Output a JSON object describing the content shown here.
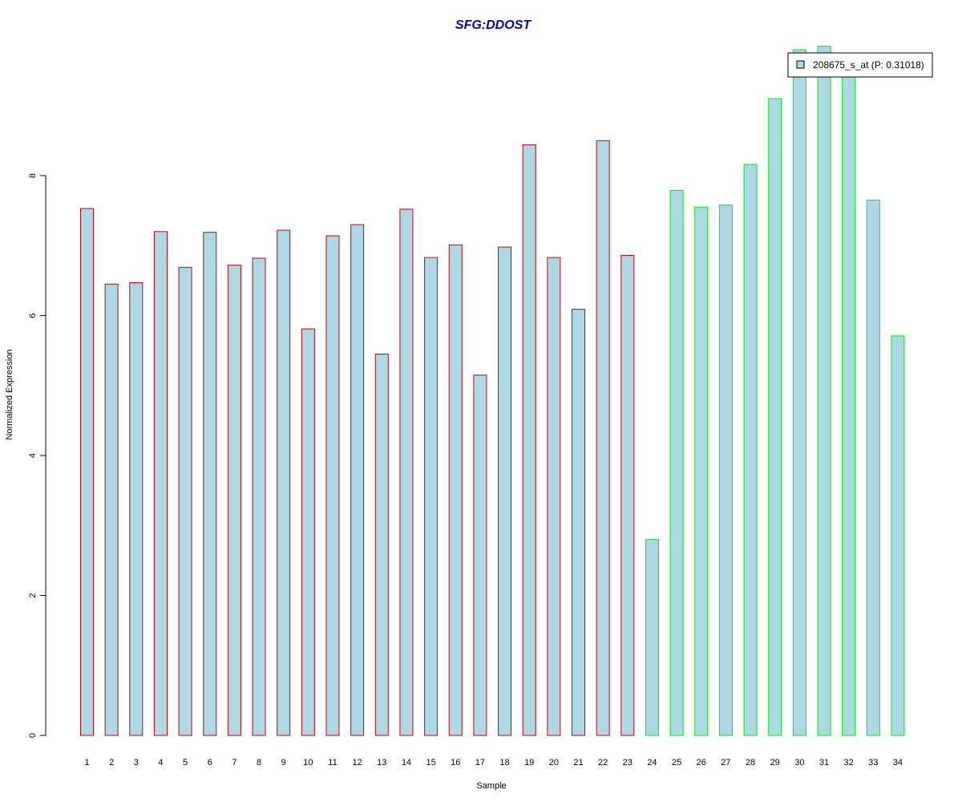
{
  "chart_data": {
    "type": "bar",
    "title": "SFG:DDOST",
    "xlabel": "Sample",
    "ylabel": "Normalized Expression",
    "ylim": [
      0,
      10
    ],
    "yticks": [
      "0",
      "2",
      "4",
      "6",
      "8"
    ],
    "categories": [
      "1",
      "2",
      "3",
      "4",
      "5",
      "6",
      "7",
      "8",
      "9",
      "10",
      "11",
      "12",
      "13",
      "14",
      "15",
      "16",
      "17",
      "18",
      "19",
      "20",
      "21",
      "22",
      "23",
      "24",
      "25",
      "26",
      "27",
      "28",
      "29",
      "30",
      "31",
      "32",
      "33",
      "34"
    ],
    "values": [
      7.53,
      6.45,
      6.47,
      7.2,
      6.69,
      7.19,
      6.72,
      6.82,
      7.22,
      5.81,
      7.14,
      7.3,
      5.45,
      7.52,
      6.83,
      7.01,
      5.15,
      6.98,
      8.44,
      6.83,
      6.09,
      8.5,
      6.86,
      2.8,
      7.79,
      7.55,
      7.58,
      8.16,
      9.1,
      9.8,
      9.85,
      9.6,
      7.65,
      5.71
    ],
    "groups": [
      "red",
      "red",
      "red",
      "red",
      "red",
      "red",
      "red",
      "red",
      "red",
      "red",
      "red",
      "red",
      "red",
      "red",
      "red",
      "red",
      "red",
      "red",
      "red",
      "red",
      "red",
      "red",
      "red",
      "green",
      "green",
      "green",
      "green",
      "green",
      "green",
      "green",
      "green",
      "green",
      "green",
      "green"
    ],
    "colors": {
      "fill": "#add8e6",
      "red_border": "#cc0000",
      "green_border": "#00ee00",
      "title": "#0000cc"
    },
    "legend": {
      "label": "208675_s_at (P: 0.31018)",
      "position": "top-right"
    }
  }
}
